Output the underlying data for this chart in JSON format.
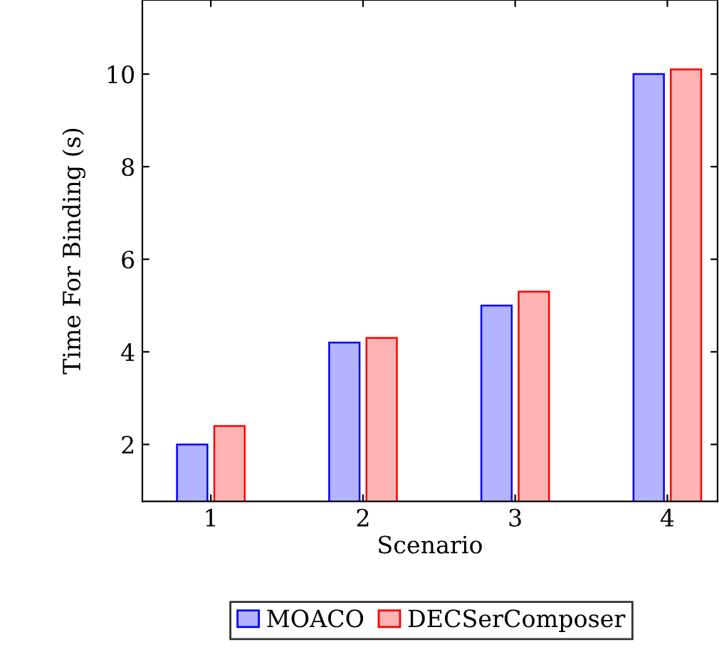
{
  "chart_data": {
    "type": "bar",
    "xlabel": "Scenario",
    "ylabel": "Time For Binding (s)",
    "categories": [
      "1",
      "2",
      "3",
      "4"
    ],
    "series": [
      {
        "name": "MOACO",
        "color": "#b3b3ff",
        "values": [
          2,
          4.2,
          5,
          10
        ]
      },
      {
        "name": "DECSerComposer",
        "color": "#ffb3b3",
        "values": [
          2.4,
          4.3,
          5.3,
          10.1
        ]
      }
    ],
    "ylim": [
      0.77,
      11.6
    ],
    "yticks": [
      2,
      4,
      6,
      8,
      10
    ],
    "grid": false,
    "legend": "bottom"
  }
}
